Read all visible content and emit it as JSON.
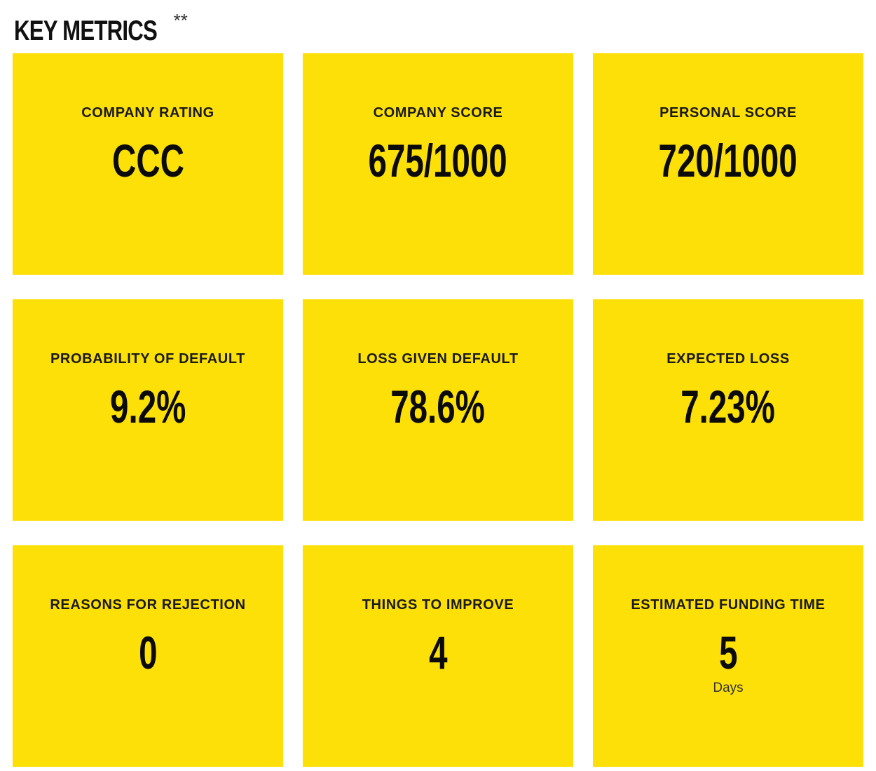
{
  "section": {
    "title": "KEY METRICS",
    "footnote_mark": "**"
  },
  "colors": {
    "card_background": "#fde008",
    "text": "#0b0b0b"
  },
  "metrics": [
    {
      "label": "COMPANY RATING",
      "value": "CCC"
    },
    {
      "label": "COMPANY SCORE",
      "value": "675/1000"
    },
    {
      "label": "PERSONAL SCORE",
      "value": "720/1000"
    },
    {
      "label": "PROBABILITY OF DEFAULT",
      "value": "9.2%"
    },
    {
      "label": "LOSS GIVEN DEFAULT",
      "value": "78.6%"
    },
    {
      "label": "EXPECTED LOSS",
      "value": "7.23%"
    },
    {
      "label": "REASONS FOR REJECTION",
      "value": "0"
    },
    {
      "label": "THINGS TO IMPROVE",
      "value": "4"
    },
    {
      "label": "ESTIMATED FUNDING TIME",
      "value": "5",
      "unit": "Days"
    }
  ]
}
